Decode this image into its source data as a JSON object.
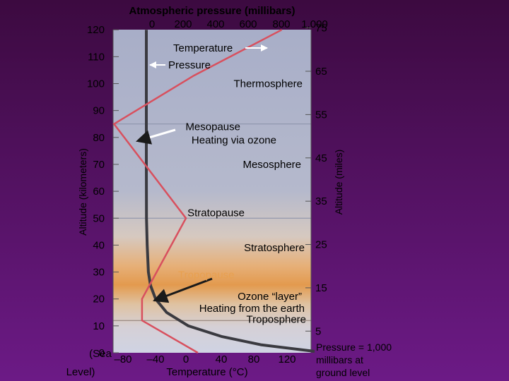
{
  "chart_data": {
    "type": "line",
    "title": "Atmospheric pressure (millibars)",
    "pressure_axis": {
      "ticks": [
        "0",
        "200",
        "400",
        "600",
        "800",
        "1,000"
      ],
      "range": [
        0,
        1000
      ]
    },
    "temperature_axis": {
      "label": "Temperature (°C)",
      "ticks": [
        "–80",
        "–40",
        "0",
        "40",
        "80",
        "120"
      ],
      "range": [
        -100,
        140
      ]
    },
    "left_axis": {
      "label": "Altitude (kilometers)",
      "range": [
        0,
        120
      ],
      "ticks": [
        {
          "value": 120,
          "text": "120"
        },
        {
          "value": 110,
          "text": "110"
        },
        {
          "value": 100,
          "text": "100"
        },
        {
          "value": 90,
          "text": "90"
        },
        {
          "value": 80,
          "text": "80"
        },
        {
          "value": 70,
          "text": "70"
        },
        {
          "value": 60,
          "text": "60"
        },
        {
          "value": 50,
          "text": "50"
        },
        {
          "value": 40,
          "text": "40"
        },
        {
          "value": 30,
          "text": "30"
        },
        {
          "value": 20,
          "text": "20"
        },
        {
          "value": 10,
          "text": "10"
        },
        {
          "value": 0,
          "text": "0"
        }
      ],
      "sea_level_label": [
        "(Sea",
        "Level)"
      ]
    },
    "right_axis": {
      "label": "Altitude (miles)",
      "ticks": [
        {
          "value": 75,
          "text": "75"
        },
        {
          "value": 65,
          "text": "65"
        },
        {
          "value": 55,
          "text": "55"
        },
        {
          "value": 45,
          "text": "45"
        },
        {
          "value": 35,
          "text": "35"
        },
        {
          "value": 25,
          "text": "25"
        },
        {
          "value": 15,
          "text": "15"
        },
        {
          "value": 5,
          "text": "5"
        }
      ]
    },
    "series": [
      {
        "name": "Temperature",
        "color": "#d8505e",
        "points": [
          {
            "temp": 15,
            "alt": 0
          },
          {
            "temp": -55,
            "alt": 12
          },
          {
            "temp": -55,
            "alt": 20
          },
          {
            "temp": 0,
            "alt": 50
          },
          {
            "temp": -90,
            "alt": 85
          },
          {
            "temp": 10,
            "alt": 103
          },
          {
            "temp": 120,
            "alt": 120
          }
        ]
      },
      {
        "name": "Pressure",
        "color": "#3a3a40",
        "points": [
          {
            "pressure": 1000,
            "alt": 0
          },
          {
            "pressure": 680,
            "alt": 3
          },
          {
            "pressure": 450,
            "alt": 6
          },
          {
            "pressure": 250,
            "alt": 10
          },
          {
            "pressure": 120,
            "alt": 15
          },
          {
            "pressure": 55,
            "alt": 20
          },
          {
            "pressure": 25,
            "alt": 25
          },
          {
            "pressure": 12,
            "alt": 30
          },
          {
            "pressure": 5,
            "alt": 40
          },
          {
            "pressure": 1,
            "alt": 50
          },
          {
            "pressure": 0,
            "alt": 70
          },
          {
            "pressure": 0,
            "alt": 120
          }
        ]
      }
    ],
    "layer_boundaries": [
      {
        "alt": 12,
        "name": "Tropopause"
      },
      {
        "alt": 50,
        "name": "Stratopause"
      },
      {
        "alt": 85,
        "name": "Mesopause"
      }
    ],
    "legend": {
      "temperature": "Temperature",
      "pressure": "Pressure"
    },
    "annotations": [
      {
        "text": "Thermosphere",
        "x": 470,
        "y": 100
      },
      {
        "text": "Mesopause",
        "x": 300,
        "y": 84
      },
      {
        "text": "Heating via ozone",
        "x": 340,
        "y": 79
      },
      {
        "text": "Mesosphere",
        "x": 380,
        "y": 70
      },
      {
        "text": "Stratopause",
        "x": 300,
        "y": 52
      },
      {
        "text": "Stratosphere",
        "x": 380,
        "y": 39
      },
      {
        "text": "Tropopause",
        "x": 300,
        "y": 29
      },
      {
        "text": "Ozone “layer”",
        "x": 370,
        "y": 21
      },
      {
        "text": "Heating from the earth",
        "x": 345,
        "y": 16.5
      },
      {
        "text": "Troposphere",
        "x": 385,
        "y": 12.5
      }
    ],
    "note": [
      "Pressure = 1,000",
      "millibars at",
      "ground level"
    ],
    "colors": {
      "background_top": "#3c0a40",
      "background_bottom": "#6c1a86",
      "plot_top": "#a8aec8",
      "plot_band": "#e39a4e",
      "plot_bottom": "#cfd3e3",
      "temperature": "#d8505e",
      "pressure": "#3a3a40",
      "arrow": "#2a2a40"
    }
  }
}
